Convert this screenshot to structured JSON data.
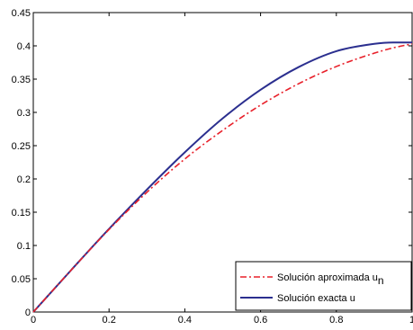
{
  "chart_data": {
    "type": "line",
    "xlim": [
      0,
      1
    ],
    "ylim": [
      0,
      0.45
    ],
    "x_ticks": [
      0,
      0.2,
      0.4,
      0.6,
      0.8,
      1
    ],
    "x_tick_labels": [
      "0",
      "0.2",
      "0.4",
      "0.6",
      "0.8",
      "1"
    ],
    "y_ticks": [
      0,
      0.05,
      0.1,
      0.15,
      0.2,
      0.25,
      0.3,
      0.35,
      0.4,
      0.45
    ],
    "y_tick_labels": [
      "0",
      "0.05",
      "0.1",
      "0.15",
      "0.2",
      "0.25",
      "0.3",
      "0.35",
      "0.4",
      "0.45"
    ],
    "grid": false,
    "legend_position": "bottom-right",
    "series": [
      {
        "name": "Solución aproximada u",
        "name_subscript": "n",
        "color": "#e8202a",
        "line_style": "dash-dot",
        "x": [
          0,
          0.1,
          0.2,
          0.3,
          0.4,
          0.5,
          0.6,
          0.7,
          0.8,
          0.9,
          0.95,
          1
        ],
        "y": [
          0,
          0.063,
          0.124,
          0.18,
          0.23,
          0.273,
          0.311,
          0.343,
          0.369,
          0.389,
          0.397,
          0.403
        ]
      },
      {
        "name": "Solución exacta u",
        "color": "#2b2f8f",
        "line_style": "solid",
        "x": [
          0,
          0.1,
          0.2,
          0.3,
          0.4,
          0.5,
          0.6,
          0.7,
          0.8,
          0.9,
          0.95,
          1
        ],
        "y": [
          0,
          0.063,
          0.125,
          0.184,
          0.24,
          0.291,
          0.334,
          0.368,
          0.392,
          0.403,
          0.405,
          0.405
        ]
      }
    ]
  }
}
